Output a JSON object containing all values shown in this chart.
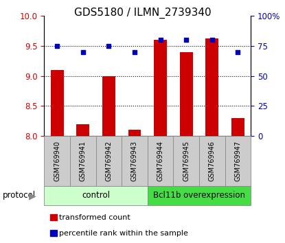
{
  "title": "GDS5180 / ILMN_2739340",
  "samples": [
    "GSM769940",
    "GSM769941",
    "GSM769942",
    "GSM769943",
    "GSM769944",
    "GSM769945",
    "GSM769946",
    "GSM769947"
  ],
  "transformed_counts": [
    9.1,
    8.2,
    9.0,
    8.1,
    9.6,
    9.4,
    9.62,
    8.3
  ],
  "percentile_ranks": [
    75,
    70,
    75,
    70,
    80,
    80,
    80,
    70
  ],
  "ylim_left": [
    8,
    10
  ],
  "ylim_right": [
    0,
    100
  ],
  "yticks_left": [
    8,
    8.5,
    9,
    9.5,
    10
  ],
  "yticks_right": [
    0,
    25,
    50,
    75,
    100
  ],
  "ytick_labels_right": [
    "0",
    "25",
    "50",
    "75",
    "100%"
  ],
  "bar_color": "#cc0000",
  "scatter_color": "#0000bb",
  "grid_color": "#000000",
  "title_fontsize": 11,
  "bar_width": 0.5,
  "background_color": "#ffffff",
  "tick_label_color_left": "#cc0000",
  "tick_label_color_right": "#0000bb",
  "control_color": "#ccffcc",
  "bcl_color": "#44dd44",
  "sample_box_color": "#cccccc",
  "legend_label_red": "transformed count",
  "legend_label_blue": "percentile rank within the sample",
  "protocol_label": "protocol",
  "group_control_label": "control",
  "group_bcl_label": "Bcl11b overexpression"
}
